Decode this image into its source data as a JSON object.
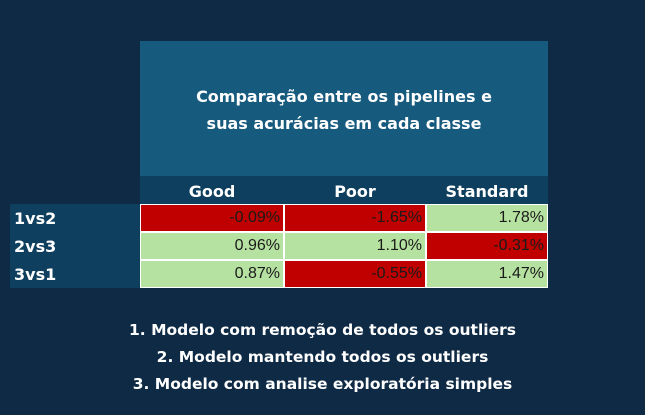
{
  "title": "Comparação entre os pipelines e suas acurácias em cada classe",
  "columns": [
    "Good",
    "Poor",
    "Standard"
  ],
  "rows": [
    {
      "label": "1vs2",
      "values": [
        "-0.09%",
        "-1.65%",
        "1.78%"
      ],
      "colors": [
        "#c00000",
        "#c00000",
        "#b6e2a1"
      ]
    },
    {
      "label": "2vs3",
      "values": [
        "0.96%",
        "1.10%",
        "-0.31%"
      ],
      "colors": [
        "#b6e2a1",
        "#b6e2a1",
        "#c00000"
      ]
    },
    {
      "label": "3vs1",
      "values": [
        "0.87%",
        "-0.55%",
        "1.47%"
      ],
      "colors": [
        "#b6e2a1",
        "#c00000",
        "#b6e2a1"
      ]
    }
  ],
  "notes": [
    "1. Modelo com remoção de todos os outliers",
    "2. Modelo mantendo todos os outliers",
    "3. Modelo com analise exploratória simples"
  ],
  "colors": {
    "background": "#0f2a45",
    "title_box": "#165a7e",
    "header_band": "#0f3f5e",
    "negative": "#c00000",
    "positive": "#b6e2a1"
  }
}
